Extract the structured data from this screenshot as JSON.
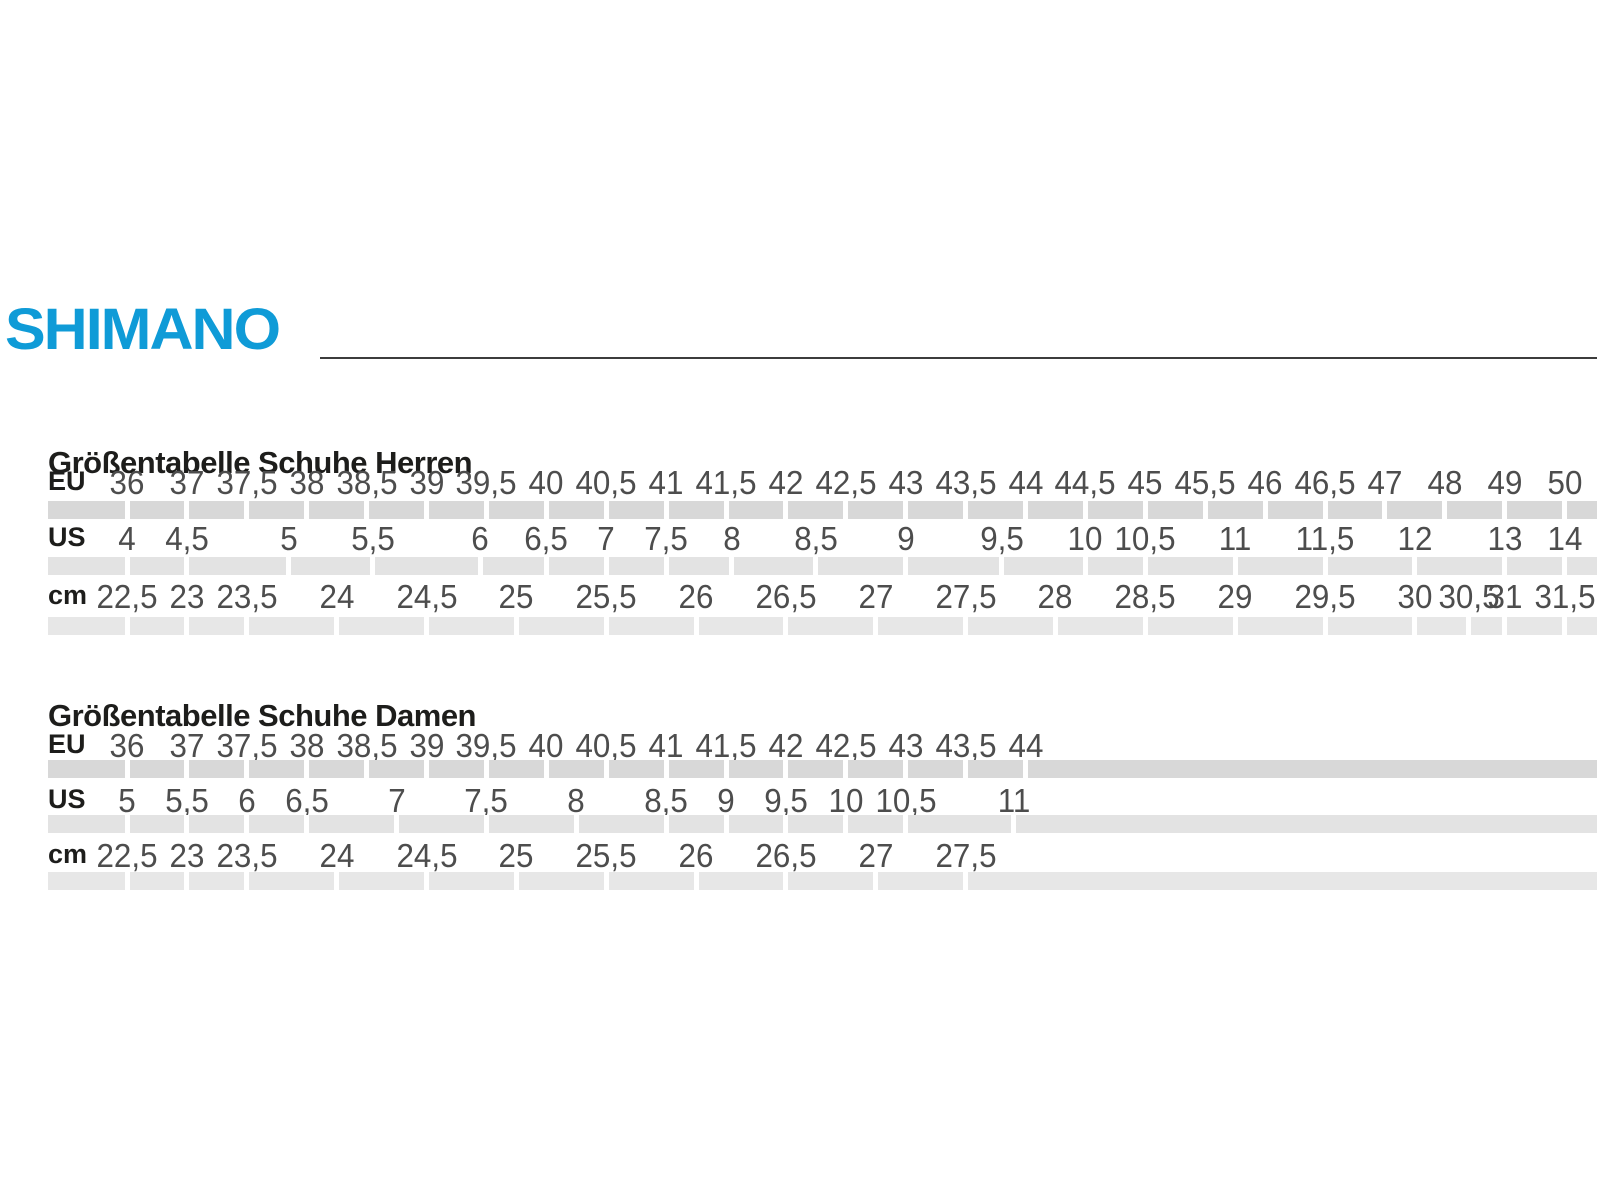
{
  "brand": {
    "logo_text": "SHIMANO",
    "logo_color": "#0F9BD7"
  },
  "colors": {
    "rule": "#3c3c3c",
    "heading_text": "#1d1d1b",
    "number_text": "#4d4d4d",
    "stripe_eu": "#d8d8d8",
    "stripe_us": "#e3e3e3",
    "stripe_cm": "#e7e7e7"
  },
  "tables": [
    {
      "title": "Größentabelle Schuhe Herren",
      "rows": [
        {
          "label": "EU",
          "values": [
            {
              "t": "36",
              "c": 0
            },
            {
              "t": "37",
              "c": 1
            },
            {
              "t": "37,5",
              "c": 2
            },
            {
              "t": "38",
              "c": 3
            },
            {
              "t": "38,5",
              "c": 4
            },
            {
              "t": "39",
              "c": 5
            },
            {
              "t": "39,5",
              "c": 6
            },
            {
              "t": "40",
              "c": 7
            },
            {
              "t": "40,5",
              "c": 8
            },
            {
              "t": "41",
              "c": 9
            },
            {
              "t": "41,5",
              "c": 10
            },
            {
              "t": "42",
              "c": 11
            },
            {
              "t": "42,5",
              "c": 12
            },
            {
              "t": "43",
              "c": 13
            },
            {
              "t": "43,5",
              "c": 14
            },
            {
              "t": "44",
              "c": 15
            },
            {
              "t": "44,5",
              "c": 16
            },
            {
              "t": "45",
              "c": 17
            },
            {
              "t": "45,5",
              "c": 18
            },
            {
              "t": "46",
              "c": 19
            },
            {
              "t": "46,5",
              "c": 20
            },
            {
              "t": "47",
              "c": 21
            },
            {
              "t": "48",
              "c": 22
            },
            {
              "t": "49",
              "c": 23
            },
            {
              "t": "50",
              "c": 24
            }
          ]
        },
        {
          "label": "US",
          "values": [
            {
              "t": "4",
              "c": 0
            },
            {
              "t": "4,5",
              "c": 1
            },
            {
              "t": "5",
              "c": 2.7
            },
            {
              "t": "5,5",
              "c": 4.1
            },
            {
              "t": "6",
              "c": 5.9
            },
            {
              "t": "6,5",
              "c": 7
            },
            {
              "t": "7",
              "c": 8
            },
            {
              "t": "7,5",
              "c": 9
            },
            {
              "t": "8",
              "c": 10.1
            },
            {
              "t": "8,5",
              "c": 11.5
            },
            {
              "t": "9",
              "c": 13
            },
            {
              "t": "9,5",
              "c": 14.6
            },
            {
              "t": "10",
              "c": 16
            },
            {
              "t": "10,5",
              "c": 17
            },
            {
              "t": "11",
              "c": 18.5
            },
            {
              "t": "11,5",
              "c": 20
            },
            {
              "t": "12",
              "c": 21.5
            },
            {
              "t": "13",
              "c": 23
            },
            {
              "t": "14",
              "c": 24
            }
          ]
        },
        {
          "label": "cm",
          "values": [
            {
              "t": "22,5",
              "c": 0
            },
            {
              "t": "23",
              "c": 1
            },
            {
              "t": "23,5",
              "c": 2
            },
            {
              "t": "24",
              "c": 3.5
            },
            {
              "t": "24,5",
              "c": 5
            },
            {
              "t": "25",
              "c": 6.5
            },
            {
              "t": "25,5",
              "c": 8
            },
            {
              "t": "26",
              "c": 9.5
            },
            {
              "t": "26,5",
              "c": 11
            },
            {
              "t": "27",
              "c": 12.5
            },
            {
              "t": "27,5",
              "c": 14
            },
            {
              "t": "28",
              "c": 15.5
            },
            {
              "t": "28,5",
              "c": 17
            },
            {
              "t": "29",
              "c": 18.5
            },
            {
              "t": "29,5",
              "c": 20
            },
            {
              "t": "30",
              "c": 21.5
            },
            {
              "t": "30,5",
              "c": 22.4
            },
            {
              "t": "31",
              "c": 23
            },
            {
              "t": "31,5",
              "c": 24
            }
          ]
        }
      ]
    },
    {
      "title": "Größentabelle Schuhe Damen",
      "rows": [
        {
          "label": "EU",
          "values": [
            {
              "t": "36",
              "c": 0
            },
            {
              "t": "37",
              "c": 1
            },
            {
              "t": "37,5",
              "c": 2
            },
            {
              "t": "38",
              "c": 3
            },
            {
              "t": "38,5",
              "c": 4
            },
            {
              "t": "39",
              "c": 5
            },
            {
              "t": "39,5",
              "c": 6
            },
            {
              "t": "40",
              "c": 7
            },
            {
              "t": "40,5",
              "c": 8
            },
            {
              "t": "41",
              "c": 9
            },
            {
              "t": "41,5",
              "c": 10
            },
            {
              "t": "42",
              "c": 11
            },
            {
              "t": "42,5",
              "c": 12
            },
            {
              "t": "43",
              "c": 13
            },
            {
              "t": "43,5",
              "c": 14
            },
            {
              "t": "44",
              "c": 15
            }
          ]
        },
        {
          "label": "US",
          "values": [
            {
              "t": "5",
              "c": 0
            },
            {
              "t": "5,5",
              "c": 1
            },
            {
              "t": "6",
              "c": 2
            },
            {
              "t": "6,5",
              "c": 3
            },
            {
              "t": "7",
              "c": 4.5
            },
            {
              "t": "7,5",
              "c": 6
            },
            {
              "t": "8",
              "c": 7.5
            },
            {
              "t": "8,5",
              "c": 9
            },
            {
              "t": "9",
              "c": 10
            },
            {
              "t": "9,5",
              "c": 11
            },
            {
              "t": "10",
              "c": 12
            },
            {
              "t": "10,5",
              "c": 13
            },
            {
              "t": "11",
              "c": 14.8
            }
          ]
        },
        {
          "label": "cm",
          "values": [
            {
              "t": "22,5",
              "c": 0
            },
            {
              "t": "23",
              "c": 1
            },
            {
              "t": "23,5",
              "c": 2
            },
            {
              "t": "24",
              "c": 3.5
            },
            {
              "t": "24,5",
              "c": 5
            },
            {
              "t": "25",
              "c": 6.5
            },
            {
              "t": "25,5",
              "c": 8
            },
            {
              "t": "26",
              "c": 9.5
            },
            {
              "t": "26,5",
              "c": 11
            },
            {
              "t": "27",
              "c": 12.5
            },
            {
              "t": "27,5",
              "c": 14
            }
          ]
        }
      ]
    }
  ]
}
